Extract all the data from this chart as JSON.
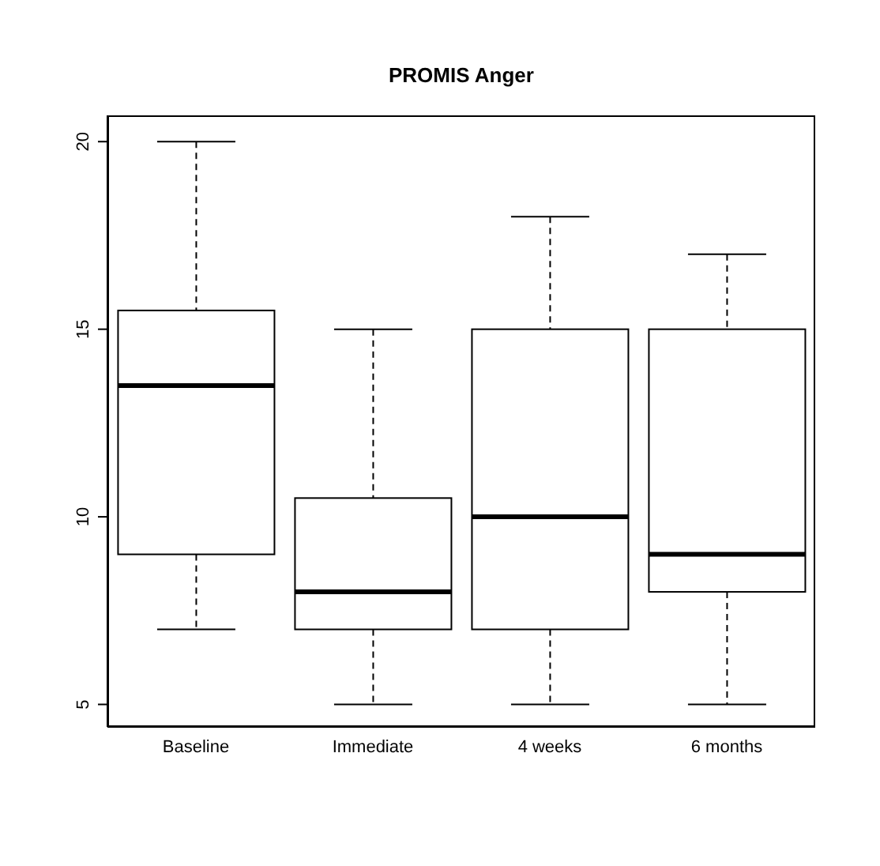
{
  "chart_data": {
    "type": "box",
    "title": "PROMIS Anger",
    "categories": [
      "Baseline",
      "Immediate",
      "4 weeks",
      "6 months"
    ],
    "boxes": [
      {
        "low": 7,
        "q1": 9,
        "median": 13.5,
        "q3": 15.5,
        "high": 20
      },
      {
        "low": 5,
        "q1": 7,
        "median": 8,
        "q3": 10.5,
        "high": 15
      },
      {
        "low": 5,
        "q1": 7,
        "median": 10,
        "q3": 15,
        "high": 18
      },
      {
        "low": 5,
        "q1": 8,
        "median": 9,
        "q3": 15,
        "high": 17
      }
    ],
    "color": "#000000",
    "ylim": [
      4.4,
      20.7
    ],
    "yticks": [
      5,
      10,
      15,
      20
    ],
    "grid": false
  }
}
